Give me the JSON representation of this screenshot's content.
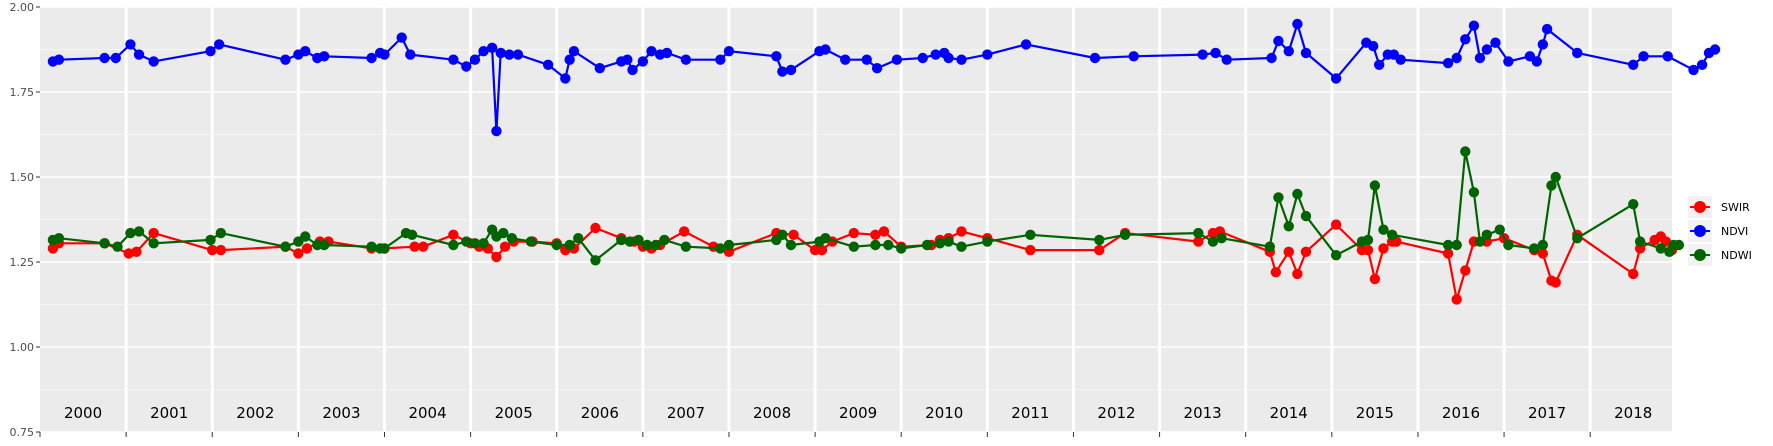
{
  "chart_data": {
    "type": "line",
    "title": "",
    "xlabel": "",
    "ylabel": "",
    "xlim": [
      2000.0,
      2018.95
    ],
    "ylim": [
      0.75,
      2.0
    ],
    "y_ticks": [
      "0.75",
      "1.00",
      "1.25",
      "1.50",
      "1.75",
      "2.00"
    ],
    "year_labels": [
      "2000",
      "2001",
      "2002",
      "2003",
      "2004",
      "2005",
      "2006",
      "2007",
      "2008",
      "2009",
      "2010",
      "2011",
      "2012",
      "2013",
      "2014",
      "2015",
      "2016",
      "2017",
      "2018"
    ],
    "grid": true,
    "legend_position": "right",
    "series": [
      {
        "name": "SWIR",
        "color": "#FF0000",
        "points": [
          [
            2000.15,
            1.29
          ],
          [
            2000.22,
            1.305
          ],
          [
            2000.75,
            1.305
          ],
          [
            2001.03,
            1.275
          ],
          [
            2001.12,
            1.28
          ],
          [
            2001.32,
            1.335
          ],
          [
            2002.0,
            1.285
          ],
          [
            2002.1,
            1.285
          ],
          [
            2002.85,
            1.295
          ],
          [
            2003.0,
            1.275
          ],
          [
            2003.1,
            1.29
          ],
          [
            2003.25,
            1.31
          ],
          [
            2003.35,
            1.31
          ],
          [
            2003.85,
            1.29
          ],
          [
            2004.0,
            1.29
          ],
          [
            2004.35,
            1.295
          ],
          [
            2004.45,
            1.295
          ],
          [
            2004.8,
            1.33
          ],
          [
            2005.0,
            1.305
          ],
          [
            2005.1,
            1.295
          ],
          [
            2005.2,
            1.29
          ],
          [
            2005.3,
            1.265
          ],
          [
            2005.4,
            1.295
          ],
          [
            2005.5,
            1.31
          ],
          [
            2005.72,
            1.31
          ],
          [
            2006.0,
            1.305
          ],
          [
            2006.1,
            1.285
          ],
          [
            2006.2,
            1.29
          ],
          [
            2006.45,
            1.35
          ],
          [
            2006.75,
            1.32
          ],
          [
            2006.9,
            1.31
          ],
          [
            2007.0,
            1.295
          ],
          [
            2007.1,
            1.29
          ],
          [
            2007.2,
            1.3
          ],
          [
            2007.48,
            1.34
          ],
          [
            2007.82,
            1.295
          ],
          [
            2008.0,
            1.28
          ],
          [
            2008.55,
            1.335
          ],
          [
            2008.75,
            1.33
          ],
          [
            2009.0,
            1.285
          ],
          [
            2009.08,
            1.285
          ],
          [
            2009.2,
            1.31
          ],
          [
            2009.45,
            1.335
          ],
          [
            2009.7,
            1.33
          ],
          [
            2009.8,
            1.34
          ],
          [
            2010.0,
            1.295
          ],
          [
            2010.35,
            1.3
          ],
          [
            2010.45,
            1.315
          ],
          [
            2010.55,
            1.32
          ],
          [
            2010.7,
            1.34
          ],
          [
            2011.0,
            1.32
          ],
          [
            2011.5,
            1.285
          ],
          [
            2012.3,
            1.285
          ],
          [
            2012.6,
            1.335
          ],
          [
            2013.45,
            1.31
          ],
          [
            2013.62,
            1.335
          ],
          [
            2013.7,
            1.34
          ],
          [
            2014.28,
            1.28
          ],
          [
            2014.35,
            1.22
          ],
          [
            2014.5,
            1.28
          ],
          [
            2014.6,
            1.215
          ],
          [
            2014.7,
            1.28
          ],
          [
            2015.05,
            1.36
          ],
          [
            2015.35,
            1.285
          ],
          [
            2015.42,
            1.285
          ],
          [
            2015.5,
            1.2
          ],
          [
            2015.6,
            1.29
          ],
          [
            2015.7,
            1.31
          ],
          [
            2015.75,
            1.31
          ],
          [
            2016.35,
            1.275
          ],
          [
            2016.45,
            1.14
          ],
          [
            2016.55,
            1.225
          ],
          [
            2016.65,
            1.31
          ],
          [
            2016.8,
            1.31
          ],
          [
            2017.0,
            1.32
          ],
          [
            2017.35,
            1.285
          ],
          [
            2017.45,
            1.275
          ],
          [
            2017.55,
            1.195
          ],
          [
            2017.6,
            1.19
          ],
          [
            2017.85,
            1.33
          ],
          [
            2018.5,
            1.215
          ],
          [
            2018.58,
            1.29
          ],
          [
            2018.75,
            1.315
          ],
          [
            2018.82,
            1.325
          ],
          [
            2018.88,
            1.31
          ],
          [
            2018.95,
            1.285
          ]
        ]
      },
      {
        "name": "NDVI",
        "color": "#0000FF",
        "points": [
          [
            2000.15,
            1.84
          ],
          [
            2000.22,
            1.845
          ],
          [
            2000.75,
            1.85
          ],
          [
            2000.88,
            1.85
          ],
          [
            2001.05,
            1.89
          ],
          [
            2001.15,
            1.86
          ],
          [
            2001.32,
            1.84
          ],
          [
            2001.98,
            1.87
          ],
          [
            2002.08,
            1.89
          ],
          [
            2002.85,
            1.845
          ],
          [
            2003.0,
            1.86
          ],
          [
            2003.08,
            1.87
          ],
          [
            2003.22,
            1.85
          ],
          [
            2003.3,
            1.855
          ],
          [
            2003.85,
            1.85
          ],
          [
            2003.95,
            1.865
          ],
          [
            2004.0,
            1.86
          ],
          [
            2004.2,
            1.91
          ],
          [
            2004.3,
            1.86
          ],
          [
            2004.8,
            1.845
          ],
          [
            2004.95,
            1.825
          ],
          [
            2005.05,
            1.845
          ],
          [
            2005.15,
            1.87
          ],
          [
            2005.25,
            1.88
          ],
          [
            2005.3,
            1.635
          ],
          [
            2005.35,
            1.865
          ],
          [
            2005.45,
            1.86
          ],
          [
            2005.55,
            1.86
          ],
          [
            2005.9,
            1.83
          ],
          [
            2006.1,
            1.79
          ],
          [
            2006.15,
            1.845
          ],
          [
            2006.2,
            1.87
          ],
          [
            2006.5,
            1.82
          ],
          [
            2006.75,
            1.84
          ],
          [
            2006.82,
            1.845
          ],
          [
            2006.88,
            1.815
          ],
          [
            2007.0,
            1.84
          ],
          [
            2007.1,
            1.87
          ],
          [
            2007.2,
            1.86
          ],
          [
            2007.28,
            1.865
          ],
          [
            2007.5,
            1.845
          ],
          [
            2007.9,
            1.845
          ],
          [
            2008.0,
            1.87
          ],
          [
            2008.55,
            1.855
          ],
          [
            2008.62,
            1.81
          ],
          [
            2008.72,
            1.815
          ],
          [
            2009.05,
            1.87
          ],
          [
            2009.12,
            1.875
          ],
          [
            2009.35,
            1.845
          ],
          [
            2009.6,
            1.845
          ],
          [
            2009.72,
            1.82
          ],
          [
            2009.95,
            1.845
          ],
          [
            2010.25,
            1.85
          ],
          [
            2010.4,
            1.86
          ],
          [
            2010.5,
            1.865
          ],
          [
            2010.55,
            1.85
          ],
          [
            2010.7,
            1.845
          ],
          [
            2011.0,
            1.86
          ],
          [
            2011.45,
            1.89
          ],
          [
            2012.25,
            1.85
          ],
          [
            2012.7,
            1.855
          ],
          [
            2013.5,
            1.86
          ],
          [
            2013.65,
            1.865
          ],
          [
            2013.78,
            1.845
          ],
          [
            2014.3,
            1.85
          ],
          [
            2014.38,
            1.9
          ],
          [
            2014.5,
            1.87
          ],
          [
            2014.6,
            1.95
          ],
          [
            2014.7,
            1.865
          ],
          [
            2015.05,
            1.79
          ],
          [
            2015.4,
            1.895
          ],
          [
            2015.48,
            1.885
          ],
          [
            2015.55,
            1.83
          ],
          [
            2015.65,
            1.86
          ],
          [
            2015.72,
            1.86
          ],
          [
            2015.8,
            1.845
          ],
          [
            2016.35,
            1.835
          ],
          [
            2016.45,
            1.85
          ],
          [
            2016.55,
            1.905
          ],
          [
            2016.65,
            1.945
          ],
          [
            2016.72,
            1.85
          ],
          [
            2016.8,
            1.875
          ],
          [
            2016.9,
            1.895
          ],
          [
            2017.05,
            1.84
          ],
          [
            2017.3,
            1.855
          ],
          [
            2017.38,
            1.84
          ],
          [
            2017.45,
            1.89
          ],
          [
            2017.5,
            1.935
          ],
          [
            2017.85,
            1.865
          ],
          [
            2018.5,
            1.83
          ],
          [
            2018.62,
            1.855
          ],
          [
            2018.9,
            1.855
          ],
          [
            2019.2,
            1.815
          ],
          [
            2019.3,
            1.83
          ],
          [
            2019.38,
            1.865
          ],
          [
            2019.45,
            1.875
          ]
        ]
      },
      {
        "name": "NDWI",
        "color": "#006400",
        "points": [
          [
            2000.15,
            1.315
          ],
          [
            2000.22,
            1.32
          ],
          [
            2000.75,
            1.305
          ],
          [
            2000.9,
            1.295
          ],
          [
            2001.05,
            1.335
          ],
          [
            2001.15,
            1.34
          ],
          [
            2001.32,
            1.305
          ],
          [
            2001.98,
            1.315
          ],
          [
            2002.1,
            1.335
          ],
          [
            2002.85,
            1.295
          ],
          [
            2003.0,
            1.31
          ],
          [
            2003.08,
            1.325
          ],
          [
            2003.22,
            1.3
          ],
          [
            2003.3,
            1.3
          ],
          [
            2003.85,
            1.295
          ],
          [
            2003.95,
            1.29
          ],
          [
            2004.0,
            1.29
          ],
          [
            2004.25,
            1.335
          ],
          [
            2004.32,
            1.33
          ],
          [
            2004.8,
            1.3
          ],
          [
            2004.95,
            1.31
          ],
          [
            2005.05,
            1.305
          ],
          [
            2005.15,
            1.305
          ],
          [
            2005.25,
            1.345
          ],
          [
            2005.3,
            1.325
          ],
          [
            2005.38,
            1.335
          ],
          [
            2005.48,
            1.32
          ],
          [
            2005.7,
            1.31
          ],
          [
            2006.0,
            1.3
          ],
          [
            2006.15,
            1.3
          ],
          [
            2006.25,
            1.32
          ],
          [
            2006.45,
            1.255
          ],
          [
            2006.75,
            1.315
          ],
          [
            2006.85,
            1.31
          ],
          [
            2006.95,
            1.315
          ],
          [
            2007.05,
            1.3
          ],
          [
            2007.15,
            1.3
          ],
          [
            2007.25,
            1.315
          ],
          [
            2007.5,
            1.295
          ],
          [
            2007.9,
            1.29
          ],
          [
            2008.0,
            1.3
          ],
          [
            2008.55,
            1.315
          ],
          [
            2008.62,
            1.33
          ],
          [
            2008.72,
            1.3
          ],
          [
            2009.05,
            1.31
          ],
          [
            2009.12,
            1.32
          ],
          [
            2009.45,
            1.295
          ],
          [
            2009.7,
            1.3
          ],
          [
            2009.85,
            1.3
          ],
          [
            2010.0,
            1.29
          ],
          [
            2010.3,
            1.3
          ],
          [
            2010.45,
            1.305
          ],
          [
            2010.55,
            1.31
          ],
          [
            2010.7,
            1.295
          ],
          [
            2011.0,
            1.31
          ],
          [
            2011.5,
            1.33
          ],
          [
            2012.3,
            1.315
          ],
          [
            2012.6,
            1.33
          ],
          [
            2013.45,
            1.335
          ],
          [
            2013.62,
            1.31
          ],
          [
            2013.72,
            1.32
          ],
          [
            2014.28,
            1.295
          ],
          [
            2014.38,
            1.44
          ],
          [
            2014.5,
            1.355
          ],
          [
            2014.6,
            1.45
          ],
          [
            2014.7,
            1.385
          ],
          [
            2015.05,
            1.27
          ],
          [
            2015.35,
            1.31
          ],
          [
            2015.42,
            1.315
          ],
          [
            2015.5,
            1.475
          ],
          [
            2015.6,
            1.345
          ],
          [
            2015.7,
            1.33
          ],
          [
            2016.35,
            1.3
          ],
          [
            2016.45,
            1.3
          ],
          [
            2016.55,
            1.575
          ],
          [
            2016.65,
            1.455
          ],
          [
            2016.72,
            1.31
          ],
          [
            2016.8,
            1.33
          ],
          [
            2016.95,
            1.345
          ],
          [
            2017.05,
            1.3
          ],
          [
            2017.35,
            1.29
          ],
          [
            2017.45,
            1.3
          ],
          [
            2017.55,
            1.475
          ],
          [
            2017.6,
            1.5
          ],
          [
            2017.85,
            1.32
          ],
          [
            2018.5,
            1.42
          ],
          [
            2018.58,
            1.31
          ],
          [
            2018.82,
            1.29
          ],
          [
            2018.92,
            1.28
          ],
          [
            2018.97,
            1.3
          ],
          [
            2019.03,
            1.3
          ]
        ]
      }
    ]
  }
}
